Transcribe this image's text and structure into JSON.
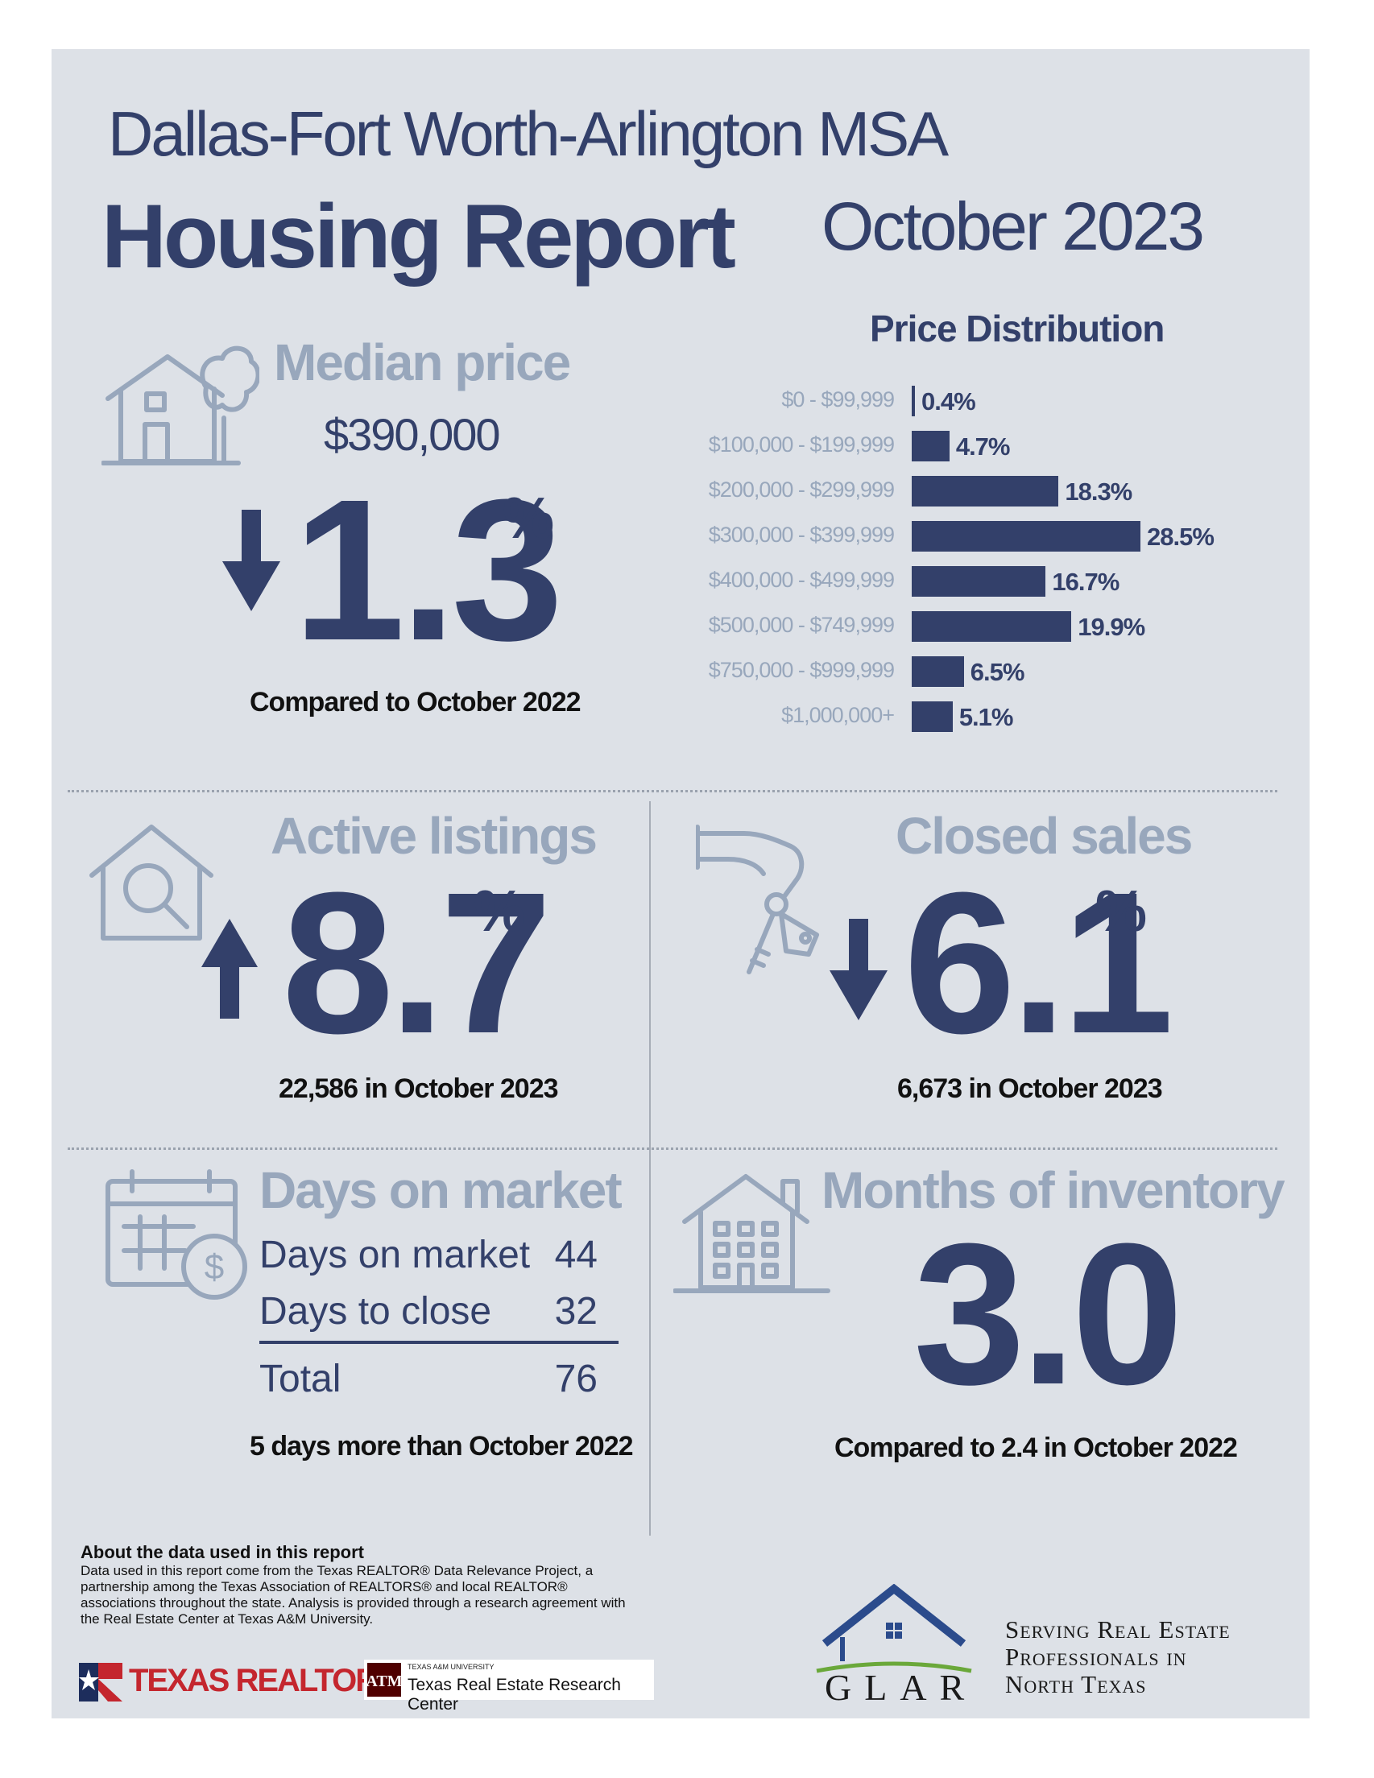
{
  "header": {
    "region": "Dallas-Fort Worth-Arlington MSA",
    "title": "Housing Report",
    "period": "October 2023"
  },
  "median_price": {
    "heading": "Median price",
    "value": "$390,000",
    "change": "1.3",
    "percent_sign": "%",
    "direction": "down",
    "caption": "Compared to October 2022"
  },
  "price_distribution": {
    "title": "Price Distribution",
    "chart_data": {
      "type": "bar",
      "orientation": "horizontal",
      "title": "Price Distribution",
      "categories": [
        "$0 - $99,999",
        "$100,000 - $199,999",
        "$200,000 - $299,999",
        "$300,000 - $399,999",
        "$400,000 - $499,999",
        "$500,000 - $749,999",
        "$750,000 - $999,999",
        "$1,000,000+"
      ],
      "values": [
        0.4,
        4.7,
        18.3,
        28.5,
        16.7,
        19.9,
        6.5,
        5.1
      ],
      "labels": [
        "0.4%",
        "4.7%",
        "18.3%",
        "28.5%",
        "16.7%",
        "19.9%",
        "6.5%",
        "5.1%"
      ],
      "unit": "%"
    }
  },
  "active_listings": {
    "heading": "Active listings",
    "change": "8.7",
    "percent_sign": "%",
    "direction": "up",
    "caption": "22,586 in October 2023"
  },
  "closed_sales": {
    "heading": "Closed sales",
    "change": "6.1",
    "percent_sign": "%",
    "direction": "down",
    "caption": "6,673 in October 2023"
  },
  "days_on_market": {
    "heading": "Days on market",
    "rows": [
      {
        "label": "Days on market",
        "value": "44"
      },
      {
        "label": "Days to close",
        "value": "32"
      }
    ],
    "total_label": "Total",
    "total_value": "76",
    "caption": "5 days more than October 2022"
  },
  "months_inventory": {
    "heading": "Months of inventory",
    "value": "3.0",
    "caption": "Compared to 2.4 in October 2022"
  },
  "footer": {
    "about_title": "About the data used in this report",
    "about_text": "Data used in this report come from the Texas REALTOR® Data Relevance Project, a partnership among the Texas Association of REALTORS® and local REALTOR® associations throughout the state. Analysis is provided through a research agreement with the Real Estate Center at Texas A&M University.",
    "texas_realtors": "TEXAS REALTORS",
    "tamu_small": "TEXAS A&M UNIVERSITY",
    "tamu_center": "Texas Real Estate Research Center",
    "glar": "GLAR",
    "glar_tagline_1": "Serving Real Estate",
    "glar_tagline_2": "Professionals in",
    "glar_tagline_3": "North Texas"
  },
  "colors": {
    "navy": "#33406a",
    "slate": "#98a7bc",
    "background": "#dde1e7"
  }
}
